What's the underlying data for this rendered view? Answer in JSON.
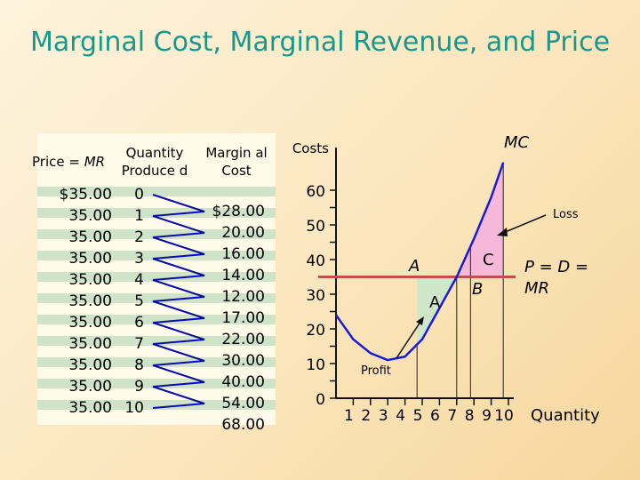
{
  "title": "Marginal Cost, Marginal Revenue, and Price",
  "table": {
    "headers": {
      "price": "Price = ",
      "price_mr": "MR",
      "quantity": "Quantity Produce d",
      "mc": "Margin al Cost"
    },
    "prices": [
      "$35.00",
      "35.00",
      "35.00",
      "35.00",
      "35.00",
      "35.00",
      "35.00",
      "35.00",
      "35.00",
      "35.00",
      "35.00"
    ],
    "quantities": [
      "0",
      "1",
      "2",
      "3",
      "4",
      "5",
      "6",
      "7",
      "8",
      "9",
      "10"
    ],
    "marginal_costs": [
      "$28.00",
      "20.00",
      "16.00",
      "14.00",
      "12.00",
      "17.00",
      "22.00",
      "30.00",
      "40.00",
      "54.00",
      "68.00"
    ]
  },
  "chart_data": {
    "type": "line",
    "title": "",
    "ylabel": "Costs",
    "xlabel": "Quantity",
    "x_ticks": [
      "1",
      "2",
      "3",
      "4",
      "5",
      "6",
      "7",
      "8",
      "9",
      "10"
    ],
    "y_ticks": [
      "0",
      "10",
      "20",
      "30",
      "40",
      "50",
      "60"
    ],
    "xlim": [
      0,
      10.5
    ],
    "ylim": [
      0,
      70
    ],
    "series": [
      {
        "name": "MC",
        "color": "#1a1ad6",
        "points": [
          [
            0,
            24
          ],
          [
            1,
            17
          ],
          [
            2,
            13
          ],
          [
            3,
            11
          ],
          [
            4,
            12
          ],
          [
            5,
            17
          ],
          [
            6,
            26
          ],
          [
            7,
            35
          ],
          [
            8,
            46
          ],
          [
            9,
            58
          ],
          [
            9.7,
            68
          ]
        ]
      },
      {
        "name": "P = D = MR",
        "color": "#c0504d",
        "points": [
          [
            0,
            35
          ],
          [
            10.5,
            35
          ]
        ]
      }
    ],
    "labels": {
      "mc": "MC",
      "pdmr": "P = D = MR",
      "A_point": "A",
      "B_point": "B",
      "C_region": "C",
      "A_region": "A",
      "profit": "Profit",
      "loss": "Loss"
    },
    "colors": {
      "profit_fill": "#cfe6c9",
      "loss_fill": "#f5b8d9",
      "mc": "#1a1ad6",
      "mr": "#c0504d"
    }
  }
}
